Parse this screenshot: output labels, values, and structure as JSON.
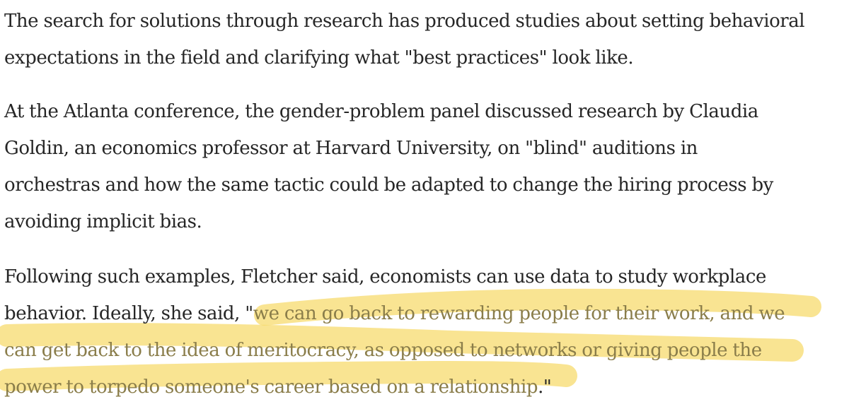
{
  "article": {
    "paragraph_1": {
      "lines": [
        "The search for solutions through research has produced studies about setting behavioral",
        "expectations in the field and clarifying what \"best practices\" look like."
      ]
    },
    "paragraph_2": {
      "lines": [
        "At the Atlanta conference, the gender-problem panel discussed research by Claudia",
        "Goldin, an economics professor at Harvard University, on \"blind\" auditions in",
        "orchestras and how the same tactic could be adapted to change the hiring process by",
        "avoiding implicit bias."
      ]
    },
    "paragraph_3": {
      "line_1": "Following such examples, Fletcher said, economists can use data to study workplace",
      "line_2_prefix": "behavior. Ideally, she said, \"",
      "line_2_highlight": "we can go back to rewarding people for their work, and we",
      "line_3_highlight": "can get back to the idea of meritocracy, as opposed to networks or giving people the",
      "line_4_highlight": "power to torpedo someone's career based on a relationship",
      "line_4_suffix": ".\""
    }
  },
  "highlight": {
    "color": "#f7d968",
    "style": "hand-drawn marker underline"
  }
}
